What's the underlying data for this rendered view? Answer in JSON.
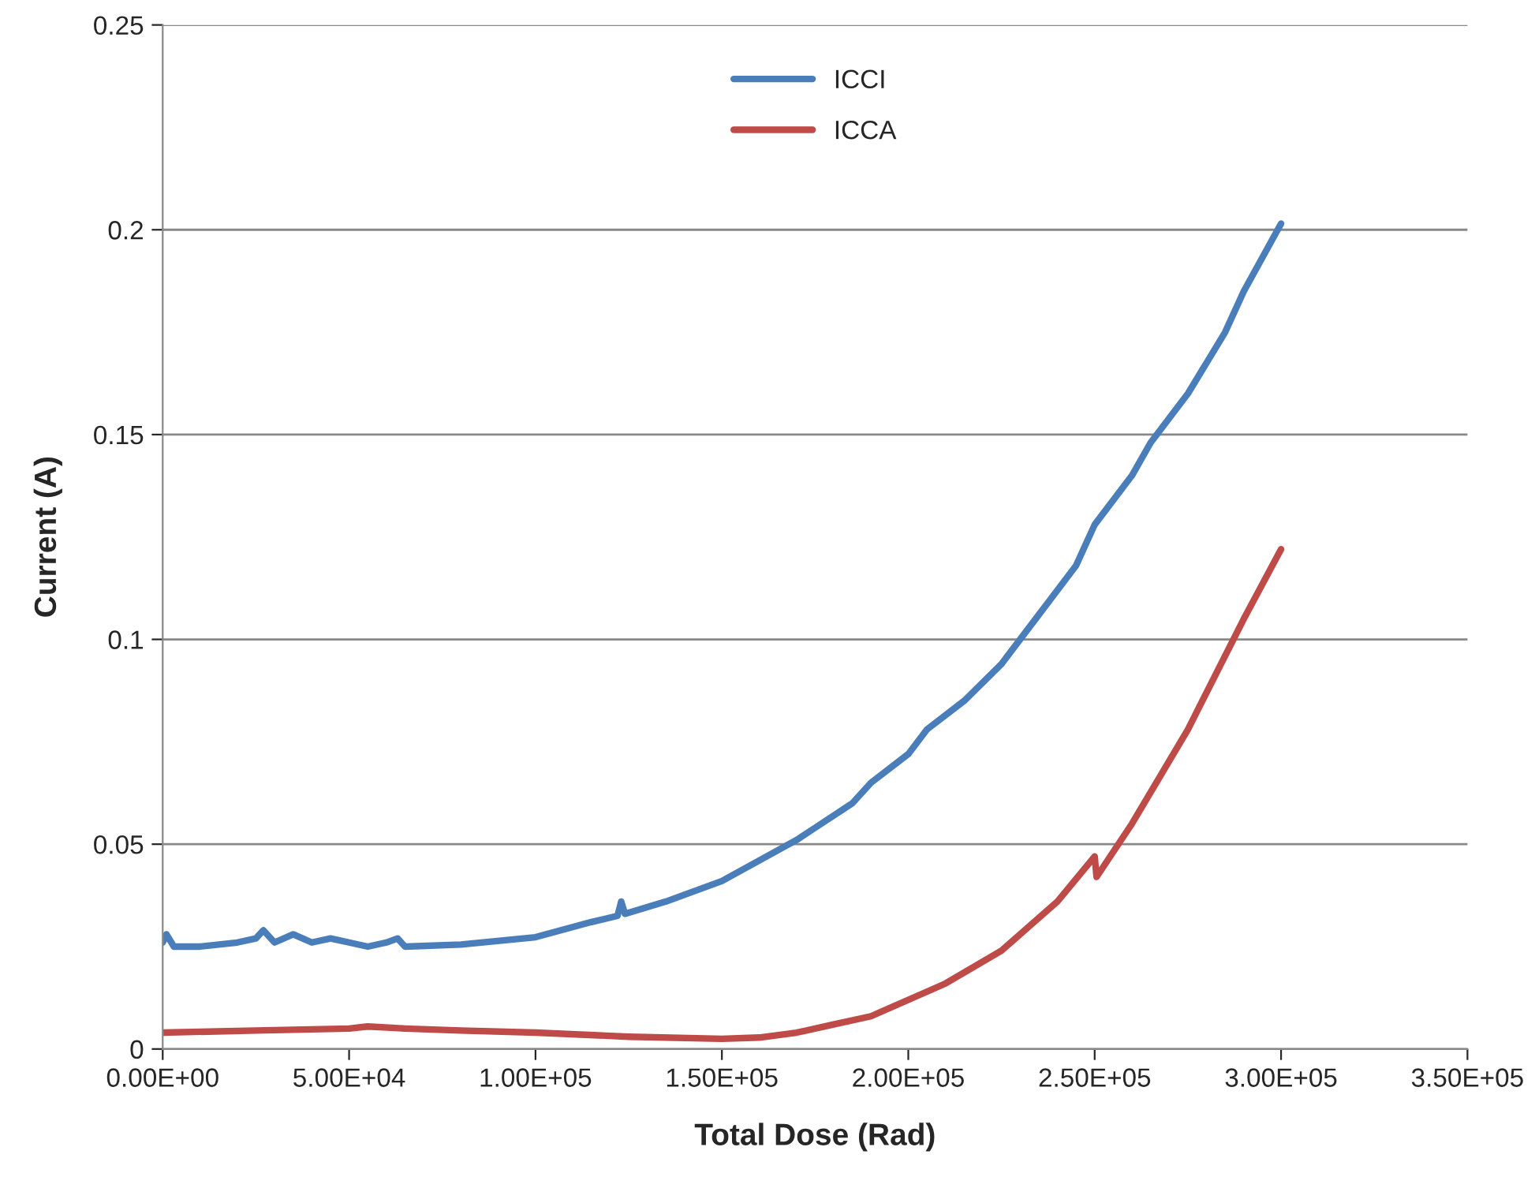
{
  "chart_data": {
    "type": "line",
    "xlabel": "Total Dose (Rad)",
    "ylabel": "Current (A)",
    "xlim": [
      0,
      350000
    ],
    "ylim": [
      0,
      0.25
    ],
    "xticks": [
      {
        "value": 0,
        "label": "0.00E+00"
      },
      {
        "value": 50000,
        "label": "5.00E+04"
      },
      {
        "value": 100000,
        "label": "1.00E+05"
      },
      {
        "value": 150000,
        "label": "1.50E+05"
      },
      {
        "value": 200000,
        "label": "2.00E+05"
      },
      {
        "value": 250000,
        "label": "2.50E+05"
      },
      {
        "value": 300000,
        "label": "3.00E+05"
      },
      {
        "value": 350000,
        "label": "3.50E+05"
      }
    ],
    "yticks": [
      0,
      0.05,
      0.1,
      0.15,
      0.2,
      0.25
    ],
    "grid": "y",
    "legend": "top",
    "line_style": "solid",
    "marker": "none",
    "series": [
      {
        "name": "ICCI",
        "color": "#4a7ebb",
        "x": [
          0,
          1000,
          3000,
          10000,
          20000,
          25000,
          27000,
          30000,
          35000,
          40000,
          45000,
          50000,
          55000,
          60000,
          63000,
          65000,
          80000,
          100000,
          115000,
          122000,
          123000,
          124000,
          135000,
          150000,
          160000,
          170000,
          175000,
          185000,
          190000,
          200000,
          205000,
          215000,
          225000,
          235000,
          245000,
          250000,
          260000,
          265000,
          275000,
          285000,
          290000,
          300000
        ],
        "values": [
          0.026,
          0.028,
          0.025,
          0.025,
          0.026,
          0.027,
          0.029,
          0.026,
          0.028,
          0.026,
          0.027,
          0.026,
          0.025,
          0.026,
          0.027,
          0.025,
          0.0255,
          0.0273,
          0.031,
          0.0325,
          0.036,
          0.033,
          0.036,
          0.041,
          0.046,
          0.051,
          0.054,
          0.06,
          0.065,
          0.072,
          0.078,
          0.085,
          0.094,
          0.106,
          0.118,
          0.128,
          0.14,
          0.148,
          0.16,
          0.175,
          0.185,
          0.2015
        ]
      },
      {
        "name": "ICCA",
        "color": "#be4b48",
        "x": [
          0,
          25000,
          50000,
          55000,
          65000,
          80000,
          100000,
          125000,
          150000,
          160000,
          170000,
          180000,
          190000,
          200000,
          210000,
          225000,
          240000,
          250000,
          250500,
          260000,
          275000,
          290000,
          300000
        ],
        "values": [
          0.004,
          0.0045,
          0.005,
          0.0055,
          0.005,
          0.0045,
          0.004,
          0.003,
          0.0025,
          0.0028,
          0.004,
          0.006,
          0.008,
          0.012,
          0.016,
          0.024,
          0.036,
          0.047,
          0.042,
          0.055,
          0.078,
          0.105,
          0.122
        ]
      }
    ]
  }
}
